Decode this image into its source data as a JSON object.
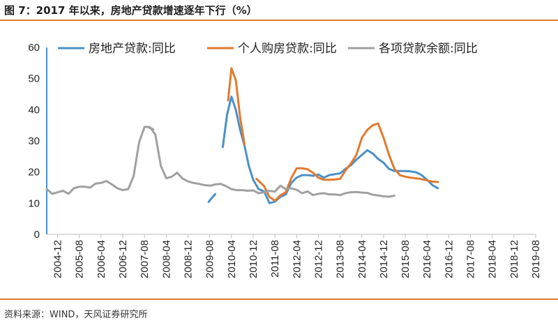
{
  "header": {
    "title": "图 7：2017 年以来，房地产贷款增速逐年下行（%）"
  },
  "footer": {
    "source": "资料来源：WIND，天风证券研究所"
  },
  "colors": {
    "rule": "#e07a2e"
  },
  "chart_data": {
    "type": "line",
    "ylim": [
      0,
      60
    ],
    "yticks": [
      "0",
      "10",
      "20",
      "30",
      "40",
      "50",
      "60"
    ],
    "xticks": [
      "2004-12",
      "2005-08",
      "2006-04",
      "2006-12",
      "2007-08",
      "2008-04",
      "2008-12",
      "2009-08",
      "2010-04",
      "2010-12",
      "2011-08",
      "2012-04",
      "2012-12",
      "2013-08",
      "2014-04",
      "2014-12",
      "2015-08",
      "2016-04",
      "2016-12",
      "2017-08",
      "2018-04",
      "2018-12",
      "2019-08"
    ],
    "legend_position": "top",
    "grid": false,
    "series": [
      {
        "name": "房地产贷款:同比",
        "color": "#4a90c8",
        "segments": [
          [
            [
              14.9,
              10.4
            ],
            [
              15.2,
              11.7
            ],
            [
              15.5,
              12.9
            ]
          ],
          [
            [
              16.2,
              28
            ],
            [
              16.6,
              38.5
            ],
            [
              17,
              44.2
            ],
            [
              17.4,
              40
            ],
            [
              17.8,
              33.5
            ],
            [
              18.2,
              28.5
            ],
            [
              18.6,
              22
            ],
            [
              19,
              17.5
            ],
            [
              19.5,
              14.5
            ],
            [
              20,
              13.8
            ],
            [
              20.5,
              10
            ],
            [
              21,
              10.5
            ],
            [
              21.5,
              12
            ],
            [
              22,
              12.8
            ],
            [
              22.5,
              16.5
            ],
            [
              23,
              18.2
            ],
            [
              23.5,
              19
            ],
            [
              24,
              19
            ],
            [
              24.5,
              18.8
            ],
            [
              25,
              19.2
            ],
            [
              25.5,
              18.2
            ],
            [
              26,
              19
            ],
            [
              26.5,
              19.3
            ],
            [
              27,
              19.6
            ],
            [
              27.5,
              21
            ],
            [
              28,
              22.2
            ],
            [
              28.5,
              24
            ],
            [
              29,
              25.5
            ],
            [
              29.5,
              27
            ],
            [
              30,
              26
            ],
            [
              30.5,
              24.2
            ],
            [
              31,
              23
            ],
            [
              31.5,
              21
            ],
            [
              32,
              20.3
            ],
            [
              32.5,
              20.3
            ],
            [
              33,
              20.3
            ],
            [
              33.5,
              20.2
            ],
            [
              34,
              19.9
            ],
            [
              34.5,
              19
            ],
            [
              35,
              17.5
            ],
            [
              35.5,
              15.8
            ],
            [
              36,
              14.8
            ]
          ]
        ]
      },
      {
        "name": "个人购房贷款:同比",
        "color": "#e07a2e",
        "segments": [
          [
            [
              16.7,
              43
            ],
            [
              17,
              53.3
            ],
            [
              17.4,
              49.5
            ],
            [
              17.8,
              37.5
            ],
            [
              18.2,
              29
            ]
          ],
          [
            [
              19.3,
              17.8
            ],
            [
              20,
              15.5
            ],
            [
              20.5,
              12
            ],
            [
              21,
              10.8
            ],
            [
              21.5,
              12.5
            ],
            [
              22,
              13.5
            ],
            [
              22.5,
              18
            ],
            [
              23,
              21.2
            ],
            [
              23.5,
              21.2
            ],
            [
              24,
              20.9
            ],
            [
              24.5,
              19.8
            ],
            [
              25,
              18.2
            ],
            [
              25.5,
              17.5
            ],
            [
              26,
              17.5
            ],
            [
              26.5,
              17.6
            ],
            [
              27,
              17.8
            ],
            [
              27.5,
              20.5
            ],
            [
              28,
              22.8
            ],
            [
              28.5,
              25.5
            ],
            [
              29,
              31
            ],
            [
              29.5,
              33.5
            ],
            [
              30,
              35
            ],
            [
              30.5,
              35.6
            ],
            [
              31,
              31
            ],
            [
              31.5,
              25.5
            ],
            [
              32,
              21
            ],
            [
              32.5,
              19
            ],
            [
              33,
              18.5
            ],
            [
              33.5,
              18.2
            ],
            [
              34,
              18
            ],
            [
              34.5,
              17.7
            ],
            [
              35,
              17.3
            ],
            [
              35.5,
              16.9
            ],
            [
              36,
              16.8
            ]
          ]
        ]
      },
      {
        "name": "各项贷款余额:同比",
        "color": "#a0a0a0",
        "segments": [
          [
            [
              0,
              14.5
            ],
            [
              0.5,
              13
            ],
            [
              1,
              13.5
            ],
            [
              1.5,
              14
            ],
            [
              2,
              13
            ],
            [
              2.5,
              14.8
            ],
            [
              3,
              15.3
            ],
            [
              3.5,
              15.3
            ],
            [
              4,
              15
            ],
            [
              4.5,
              16.3
            ],
            [
              5,
              16.5
            ],
            [
              5.5,
              17.1
            ],
            [
              6,
              16
            ],
            [
              6.5,
              14.8
            ],
            [
              7,
              14.2
            ],
            [
              7.5,
              14.5
            ],
            [
              8,
              18.7
            ],
            [
              8.5,
              29.5
            ],
            [
              9,
              34.5
            ],
            [
              9.5,
              34.4
            ],
            [
              10,
              32
            ],
            [
              10.5,
              22
            ],
            [
              11,
              18
            ],
            [
              11.5,
              18.5
            ],
            [
              12,
              19.8
            ],
            [
              12.5,
              17.9
            ],
            [
              13,
              17
            ],
            [
              13.5,
              16.5
            ],
            [
              14,
              16.2
            ],
            [
              14.5,
              15.8
            ],
            [
              15,
              15.6
            ],
            [
              15.5,
              16
            ],
            [
              16,
              16.2
            ],
            [
              16.5,
              15.5
            ],
            [
              17,
              14.5
            ],
            [
              17.5,
              14.2
            ],
            [
              18,
              14.2
            ],
            [
              18.5,
              14
            ],
            [
              19,
              14.1
            ],
            [
              19.5,
              13.2
            ],
            [
              20,
              13.5
            ],
            [
              20.5,
              14
            ],
            [
              21,
              13.7
            ],
            [
              21.5,
              15.6
            ],
            [
              22,
              14.5
            ],
            [
              22.5,
              14.8
            ],
            [
              23,
              14.3
            ],
            [
              23.5,
              13.2
            ],
            [
              24,
              13.8
            ],
            [
              24.5,
              12.6
            ],
            [
              25,
              13
            ],
            [
              25.5,
              13.2
            ],
            [
              26,
              12.8
            ],
            [
              26.5,
              12.8
            ],
            [
              27,
              12.6
            ],
            [
              27.5,
              13.2
            ],
            [
              28,
              13.5
            ],
            [
              28.5,
              13.6
            ],
            [
              29,
              13.4
            ],
            [
              29.5,
              13.3
            ],
            [
              30,
              12.7
            ],
            [
              30.5,
              12.5
            ],
            [
              31,
              12.2
            ],
            [
              31.5,
              12.1
            ],
            [
              32,
              12.4
            ]
          ],
          [
            [
              9.4,
              34.3
            ],
            [
              9.8,
              33.7
            ]
          ]
        ]
      }
    ]
  }
}
